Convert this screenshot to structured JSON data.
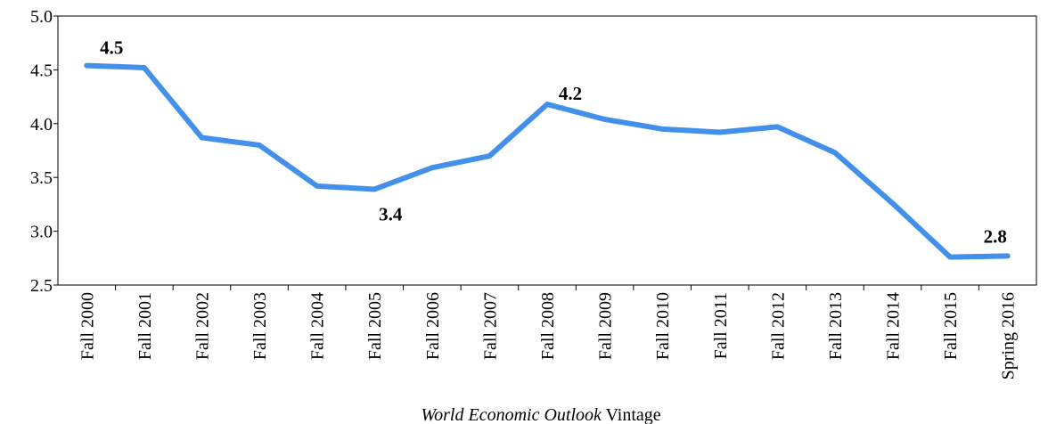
{
  "chart_data": {
    "type": "line",
    "categories": [
      "Fall 2000",
      "Fall 2001",
      "Fall 2002",
      "Fall 2003",
      "Fall 2004",
      "Fall 2005",
      "Fall 2006",
      "Fall 2007",
      "Fall 2008",
      "Fall 2009",
      "Fall 2010",
      "Fall 2011",
      "Fall 2012",
      "Fall 2013",
      "Fall 2014",
      "Fall 2015",
      "Spring 2016"
    ],
    "values": [
      4.54,
      4.52,
      3.87,
      3.8,
      3.42,
      3.39,
      3.59,
      3.7,
      4.18,
      4.04,
      3.95,
      3.92,
      3.97,
      3.73,
      3.26,
      2.76,
      2.77
    ],
    "value_labels": [
      "4.5",
      null,
      null,
      null,
      null,
      "3.4",
      null,
      null,
      "4.2",
      null,
      null,
      null,
      null,
      null,
      null,
      null,
      "2.8"
    ],
    "color": "#4390ea",
    "ylim": [
      2.5,
      5.0
    ],
    "yticks": [
      2.5,
      {
        "value": 3,
        "label": "3.0"
      },
      3.5,
      {
        "value": 4,
        "label": "4.0"
      },
      4.5,
      {
        "value": 5,
        "label": "5.0"
      }
    ],
    "xlabel": {
      "italic": "World Economic Outlook",
      "text": "Vintage"
    }
  }
}
